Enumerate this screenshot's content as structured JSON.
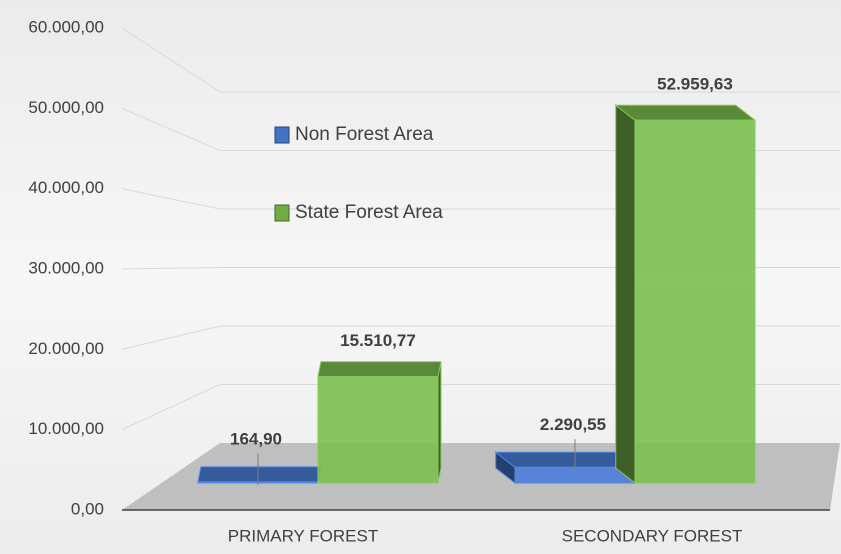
{
  "chart_data": {
    "type": "bar3d",
    "categories": [
      "PRIMARY FOREST",
      "SECONDARY FOREST"
    ],
    "series": [
      {
        "name": "Non Forest Area",
        "color": "#4472c4",
        "values": [
          164.9,
          2290.55
        ],
        "value_labels": [
          "164,90",
          "2.290,55"
        ]
      },
      {
        "name": "State Forest Area",
        "color": "#70ad47",
        "values": [
          15510.77,
          52959.63
        ],
        "value_labels": [
          "15.510,77",
          "52.959,63"
        ]
      }
    ],
    "ylim": [
      0,
      60000
    ],
    "yticks": [
      {
        "value": 0,
        "label": "0,00"
      },
      {
        "value": 10000,
        "label": "10.000,00"
      },
      {
        "value": 20000,
        "label": "20.000,00"
      },
      {
        "value": 30000,
        "label": "30.000,00"
      },
      {
        "value": 40000,
        "label": "40.000,00"
      },
      {
        "value": 50000,
        "label": "50.000,00"
      },
      {
        "value": 60000,
        "label": "60.000,00"
      }
    ],
    "grid": true
  }
}
